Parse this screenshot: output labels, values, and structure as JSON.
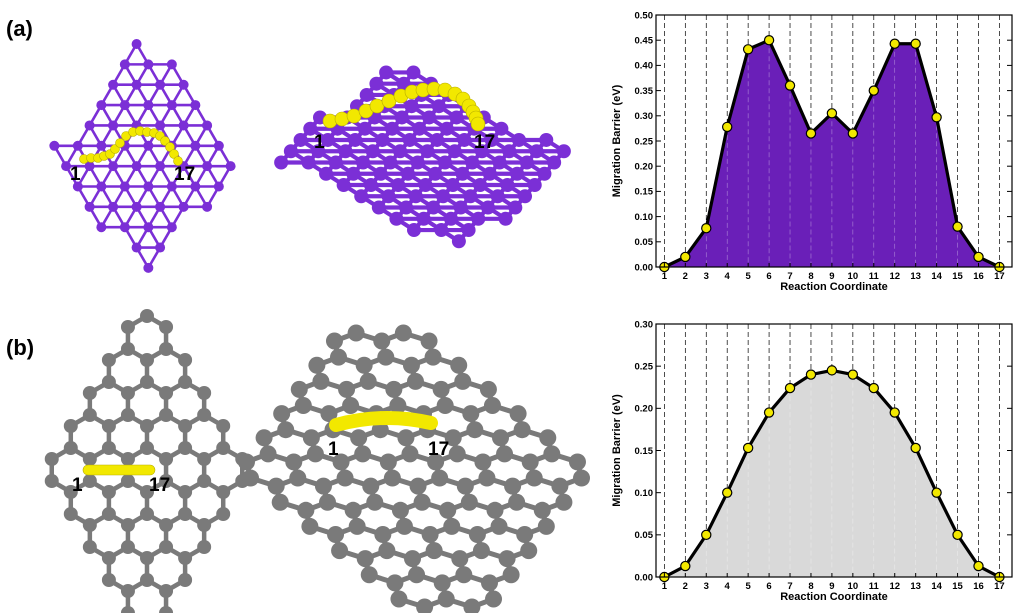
{
  "figure": {
    "panels": [
      {
        "label": "(a)",
        "lattice_color": "#7b2fd6",
        "path_color": "#f2e800",
        "start_label": "1",
        "end_label": "17"
      },
      {
        "label": "(b)",
        "lattice_color": "#7a7a7a",
        "path_color": "#f2e800",
        "start_label": "1",
        "end_label": "17"
      }
    ]
  },
  "chart_data": [
    {
      "type": "area",
      "xlabel": "Reaction Coordinate",
      "ylabel": "Migration Barrier (eV)",
      "x": [
        1,
        2,
        3,
        4,
        5,
        6,
        7,
        8,
        9,
        10,
        11,
        12,
        13,
        14,
        15,
        16,
        17
      ],
      "values": [
        0.0,
        0.02,
        0.077,
        0.278,
        0.432,
        0.45,
        0.36,
        0.265,
        0.305,
        0.265,
        0.35,
        0.443,
        0.443,
        0.297,
        0.08,
        0.02,
        0.0
      ],
      "ylim": [
        0,
        0.5
      ],
      "yticks": [
        "0.00",
        "0.05",
        "0.10",
        "0.15",
        "0.20",
        "0.25",
        "0.30",
        "0.35",
        "0.40",
        "0.45",
        "0.50"
      ],
      "fill_color": "#6a1fb8",
      "line_color": "#000000",
      "marker_color": "#f2e800",
      "grid": "vertical dashed lines at each coordinate"
    },
    {
      "type": "area",
      "xlabel": "Reaction Coordinate",
      "ylabel": "Migration Barrier (eV)",
      "x": [
        1,
        2,
        3,
        4,
        5,
        6,
        7,
        8,
        9,
        10,
        11,
        12,
        13,
        14,
        15,
        16,
        17
      ],
      "values": [
        0.0,
        0.013,
        0.05,
        0.1,
        0.153,
        0.195,
        0.224,
        0.24,
        0.245,
        0.24,
        0.224,
        0.195,
        0.153,
        0.1,
        0.05,
        0.013,
        0.0
      ],
      "ylim": [
        0,
        0.3
      ],
      "yticks": [
        "0.00",
        "0.05",
        "0.10",
        "0.15",
        "0.20",
        "0.25",
        "0.30"
      ],
      "fill_color": "#d9d9d9",
      "line_color": "#000000",
      "marker_color": "#f2e800",
      "grid": "vertical dashed lines at each coordinate"
    }
  ]
}
